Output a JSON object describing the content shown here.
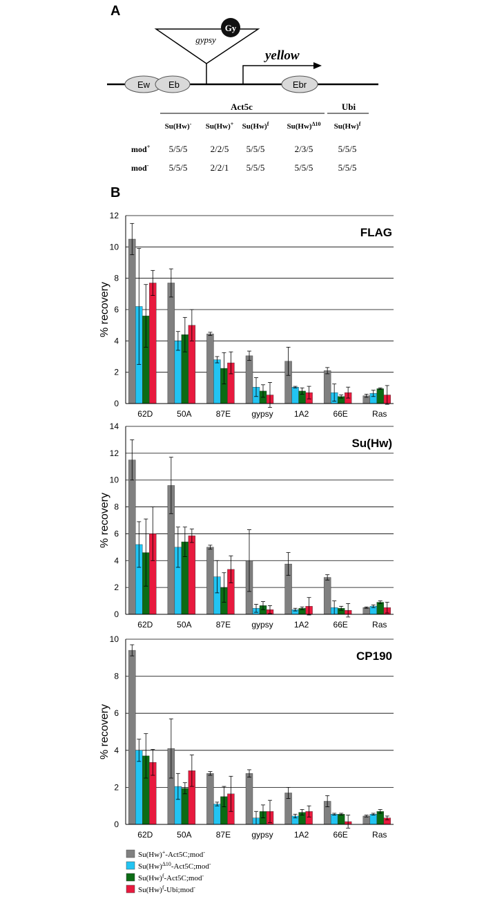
{
  "panel_a": {
    "label": "A",
    "diagram": {
      "insert": "gypsy",
      "insulator": "Gy",
      "gene": "yellow",
      "enhancers": [
        "Ew",
        "Eb",
        "Ebr"
      ]
    },
    "table": {
      "groups": [
        "Act5c",
        "Ubi"
      ],
      "columns": [
        [
          {
            "text": "Su(Hw)"
          },
          {
            "sup": "-"
          }
        ],
        [
          {
            "text": "Su(Hw)"
          },
          {
            "sup": "+"
          }
        ],
        [
          {
            "text": "Su(Hw)"
          },
          {
            "sup": "f"
          }
        ],
        [
          {
            "text": "Su(Hw)"
          },
          {
            "sup": "Δ10"
          }
        ],
        [
          {
            "text": "Su(Hw)"
          },
          {
            "sup": "f"
          }
        ]
      ],
      "rows": [
        {
          "label": [
            {
              "text": "mod"
            },
            {
              "sup": "+"
            }
          ],
          "cells": [
            "5/5/5",
            "2/2/5",
            "5/5/5",
            "2/3/5",
            "5/5/5"
          ]
        },
        {
          "label": [
            {
              "text": "mod"
            },
            {
              "sup": "-"
            }
          ],
          "cells": [
            "5/5/5",
            "2/2/1",
            "5/5/5",
            "5/5/5",
            "5/5/5"
          ]
        }
      ]
    }
  },
  "panel_b_label": "B",
  "legend": [
    {
      "name": [
        {
          "text": "Su(Hw)"
        },
        {
          "sup": "+"
        },
        {
          "text": "-Act5C;mod"
        },
        {
          "sup": "-"
        }
      ],
      "color": "#808080"
    },
    {
      "name": [
        {
          "text": "Su(Hw)"
        },
        {
          "sup": "Δ10"
        },
        {
          "text": "-Act5C;mod"
        },
        {
          "sup": "-"
        }
      ],
      "color": "#22c4f2"
    },
    {
      "name": [
        {
          "text": "Su(Hw)"
        },
        {
          "sup": "f"
        },
        {
          "text": "-Act5C;mod"
        },
        {
          "sup": "-"
        }
      ],
      "color": "#0b6b14"
    },
    {
      "name": [
        {
          "text": "Su(Hw)"
        },
        {
          "sup": "f"
        },
        {
          "text": "-Ubi;mod"
        },
        {
          "sup": "-"
        }
      ],
      "color": "#e81a3e"
    }
  ],
  "chart_data": [
    {
      "type": "bar",
      "title": "FLAG",
      "y_label": "% recovery",
      "categories": [
        "62D",
        "50A",
        "87E",
        "gypsy",
        "1A2",
        "66E",
        "Ras"
      ],
      "ylim": [
        0,
        12
      ],
      "yticks": [
        0,
        2,
        4,
        6,
        8,
        10,
        12
      ],
      "grid": true,
      "series": [
        {
          "values": [
            10.5,
            7.7,
            4.45,
            3.05,
            2.7,
            2.1,
            0.5
          ],
          "errors": [
            1.0,
            0.9,
            0.1,
            0.3,
            0.9,
            0.2,
            0.1
          ]
        },
        {
          "values": [
            6.2,
            4.0,
            2.8,
            1.05,
            1.05,
            0.7,
            0.65
          ],
          "errors": [
            3.7,
            0.6,
            0.2,
            0.6,
            0.05,
            0.55,
            0.2
          ]
        },
        {
          "values": [
            5.6,
            4.4,
            2.25,
            0.8,
            0.8,
            0.45,
            0.95
          ],
          "errors": [
            2.0,
            1.1,
            1.0,
            0.4,
            0.2,
            0.1,
            0.05
          ]
        },
        {
          "values": [
            7.7,
            5.0,
            2.6,
            0.55,
            0.7,
            0.7,
            0.55
          ],
          "errors": [
            0.8,
            1.0,
            0.7,
            0.8,
            0.4,
            0.35,
            0.6
          ]
        }
      ]
    },
    {
      "type": "bar",
      "title": "Su(Hw)",
      "y_label": "% recovery",
      "categories": [
        "62D",
        "50A",
        "87E",
        "gypsy",
        "1A2",
        "66E",
        "Ras"
      ],
      "ylim": [
        0,
        14
      ],
      "yticks": [
        0,
        2,
        4,
        6,
        8,
        10,
        12,
        14
      ],
      "grid": true,
      "series": [
        {
          "values": [
            11.5,
            9.6,
            5.0,
            4.0,
            3.75,
            2.75,
            0.5
          ],
          "errors": [
            1.5,
            2.1,
            0.15,
            2.3,
            0.85,
            0.2,
            0.05
          ]
        },
        {
          "values": [
            5.2,
            5.0,
            2.8,
            0.45,
            0.35,
            0.5,
            0.6
          ],
          "errors": [
            1.7,
            1.5,
            1.2,
            0.3,
            0.1,
            0.5,
            0.1
          ]
        },
        {
          "values": [
            4.6,
            5.4,
            2.0,
            0.65,
            0.45,
            0.45,
            0.9
          ],
          "errors": [
            2.5,
            1.1,
            1.1,
            0.3,
            0.1,
            0.15,
            0.1
          ]
        },
        {
          "values": [
            6.0,
            5.85,
            3.35,
            0.35,
            0.6,
            0.3,
            0.5
          ],
          "errors": [
            2.0,
            0.5,
            1.0,
            0.3,
            0.65,
            0.5,
            0.4
          ]
        }
      ]
    },
    {
      "type": "bar",
      "title": "CP190",
      "y_label": "% recovery",
      "categories": [
        "62D",
        "50A",
        "87E",
        "gypsy",
        "1A2",
        "66E",
        "Ras"
      ],
      "ylim": [
        0,
        10
      ],
      "yticks": [
        0,
        2,
        4,
        6,
        8,
        10
      ],
      "grid": true,
      "series": [
        {
          "values": [
            9.4,
            4.1,
            2.75,
            2.75,
            1.7,
            1.25,
            0.45
          ],
          "errors": [
            0.3,
            1.6,
            0.1,
            0.2,
            0.3,
            0.3,
            0.05
          ]
        },
        {
          "values": [
            4.0,
            2.05,
            1.1,
            0.35,
            0.45,
            0.55,
            0.55
          ],
          "errors": [
            0.6,
            0.7,
            0.1,
            0.35,
            0.1,
            0.05,
            0.05
          ]
        },
        {
          "values": [
            3.7,
            1.95,
            1.5,
            0.7,
            0.65,
            0.55,
            0.7
          ],
          "errors": [
            1.2,
            0.3,
            0.55,
            0.35,
            0.15,
            0.05,
            0.1
          ]
        },
        {
          "values": [
            3.35,
            2.9,
            1.65,
            0.7,
            0.7,
            0.15,
            0.35
          ],
          "errors": [
            0.7,
            0.85,
            0.95,
            0.6,
            0.3,
            0.35,
            0.1
          ]
        }
      ]
    }
  ]
}
